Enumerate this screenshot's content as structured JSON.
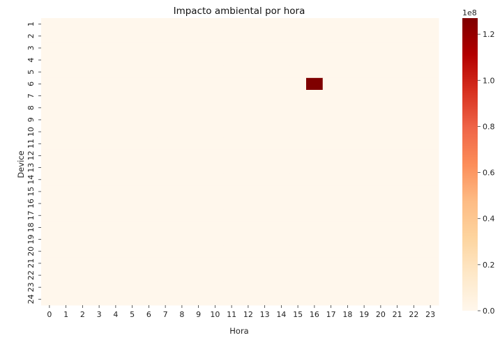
{
  "chart_data": {
    "type": "heatmap",
    "title": "Impacto ambiental por hora",
    "xlabel": "Hora",
    "ylabel": "Device",
    "x_categories": [
      "0",
      "1",
      "2",
      "3",
      "4",
      "5",
      "6",
      "7",
      "8",
      "9",
      "10",
      "11",
      "12",
      "13",
      "14",
      "15",
      "16",
      "17",
      "18",
      "19",
      "20",
      "21",
      "22",
      "23"
    ],
    "y_categories": [
      "1",
      "2",
      "3",
      "4",
      "5",
      "6",
      "7",
      "8",
      "9",
      "10",
      "11",
      "12",
      "13",
      "14",
      "15",
      "16",
      "17",
      "18",
      "19",
      "20",
      "21",
      "22",
      "23",
      "24"
    ],
    "default_value": 0,
    "cells": [
      {
        "device": "6",
        "hora": "16",
        "value": 127000000
      }
    ],
    "colorbar": {
      "range": [
        0,
        127000000
      ],
      "ticks": [
        0,
        20000000,
        40000000,
        60000000,
        80000000,
        100000000,
        120000000
      ],
      "tick_labels": [
        "0.0",
        "0.2",
        "0.4",
        "0.6",
        "0.8",
        "1.0",
        "1.2"
      ],
      "offset_label": "1e8",
      "colormap": "OrRd",
      "colors": [
        "#fff7ec",
        "#fee8c8",
        "#fdd49e",
        "#fdbb84",
        "#fc8d59",
        "#ef6548",
        "#d7301f",
        "#b30000",
        "#7f0000"
      ]
    },
    "grid": false,
    "legend": "colorbar-right"
  }
}
